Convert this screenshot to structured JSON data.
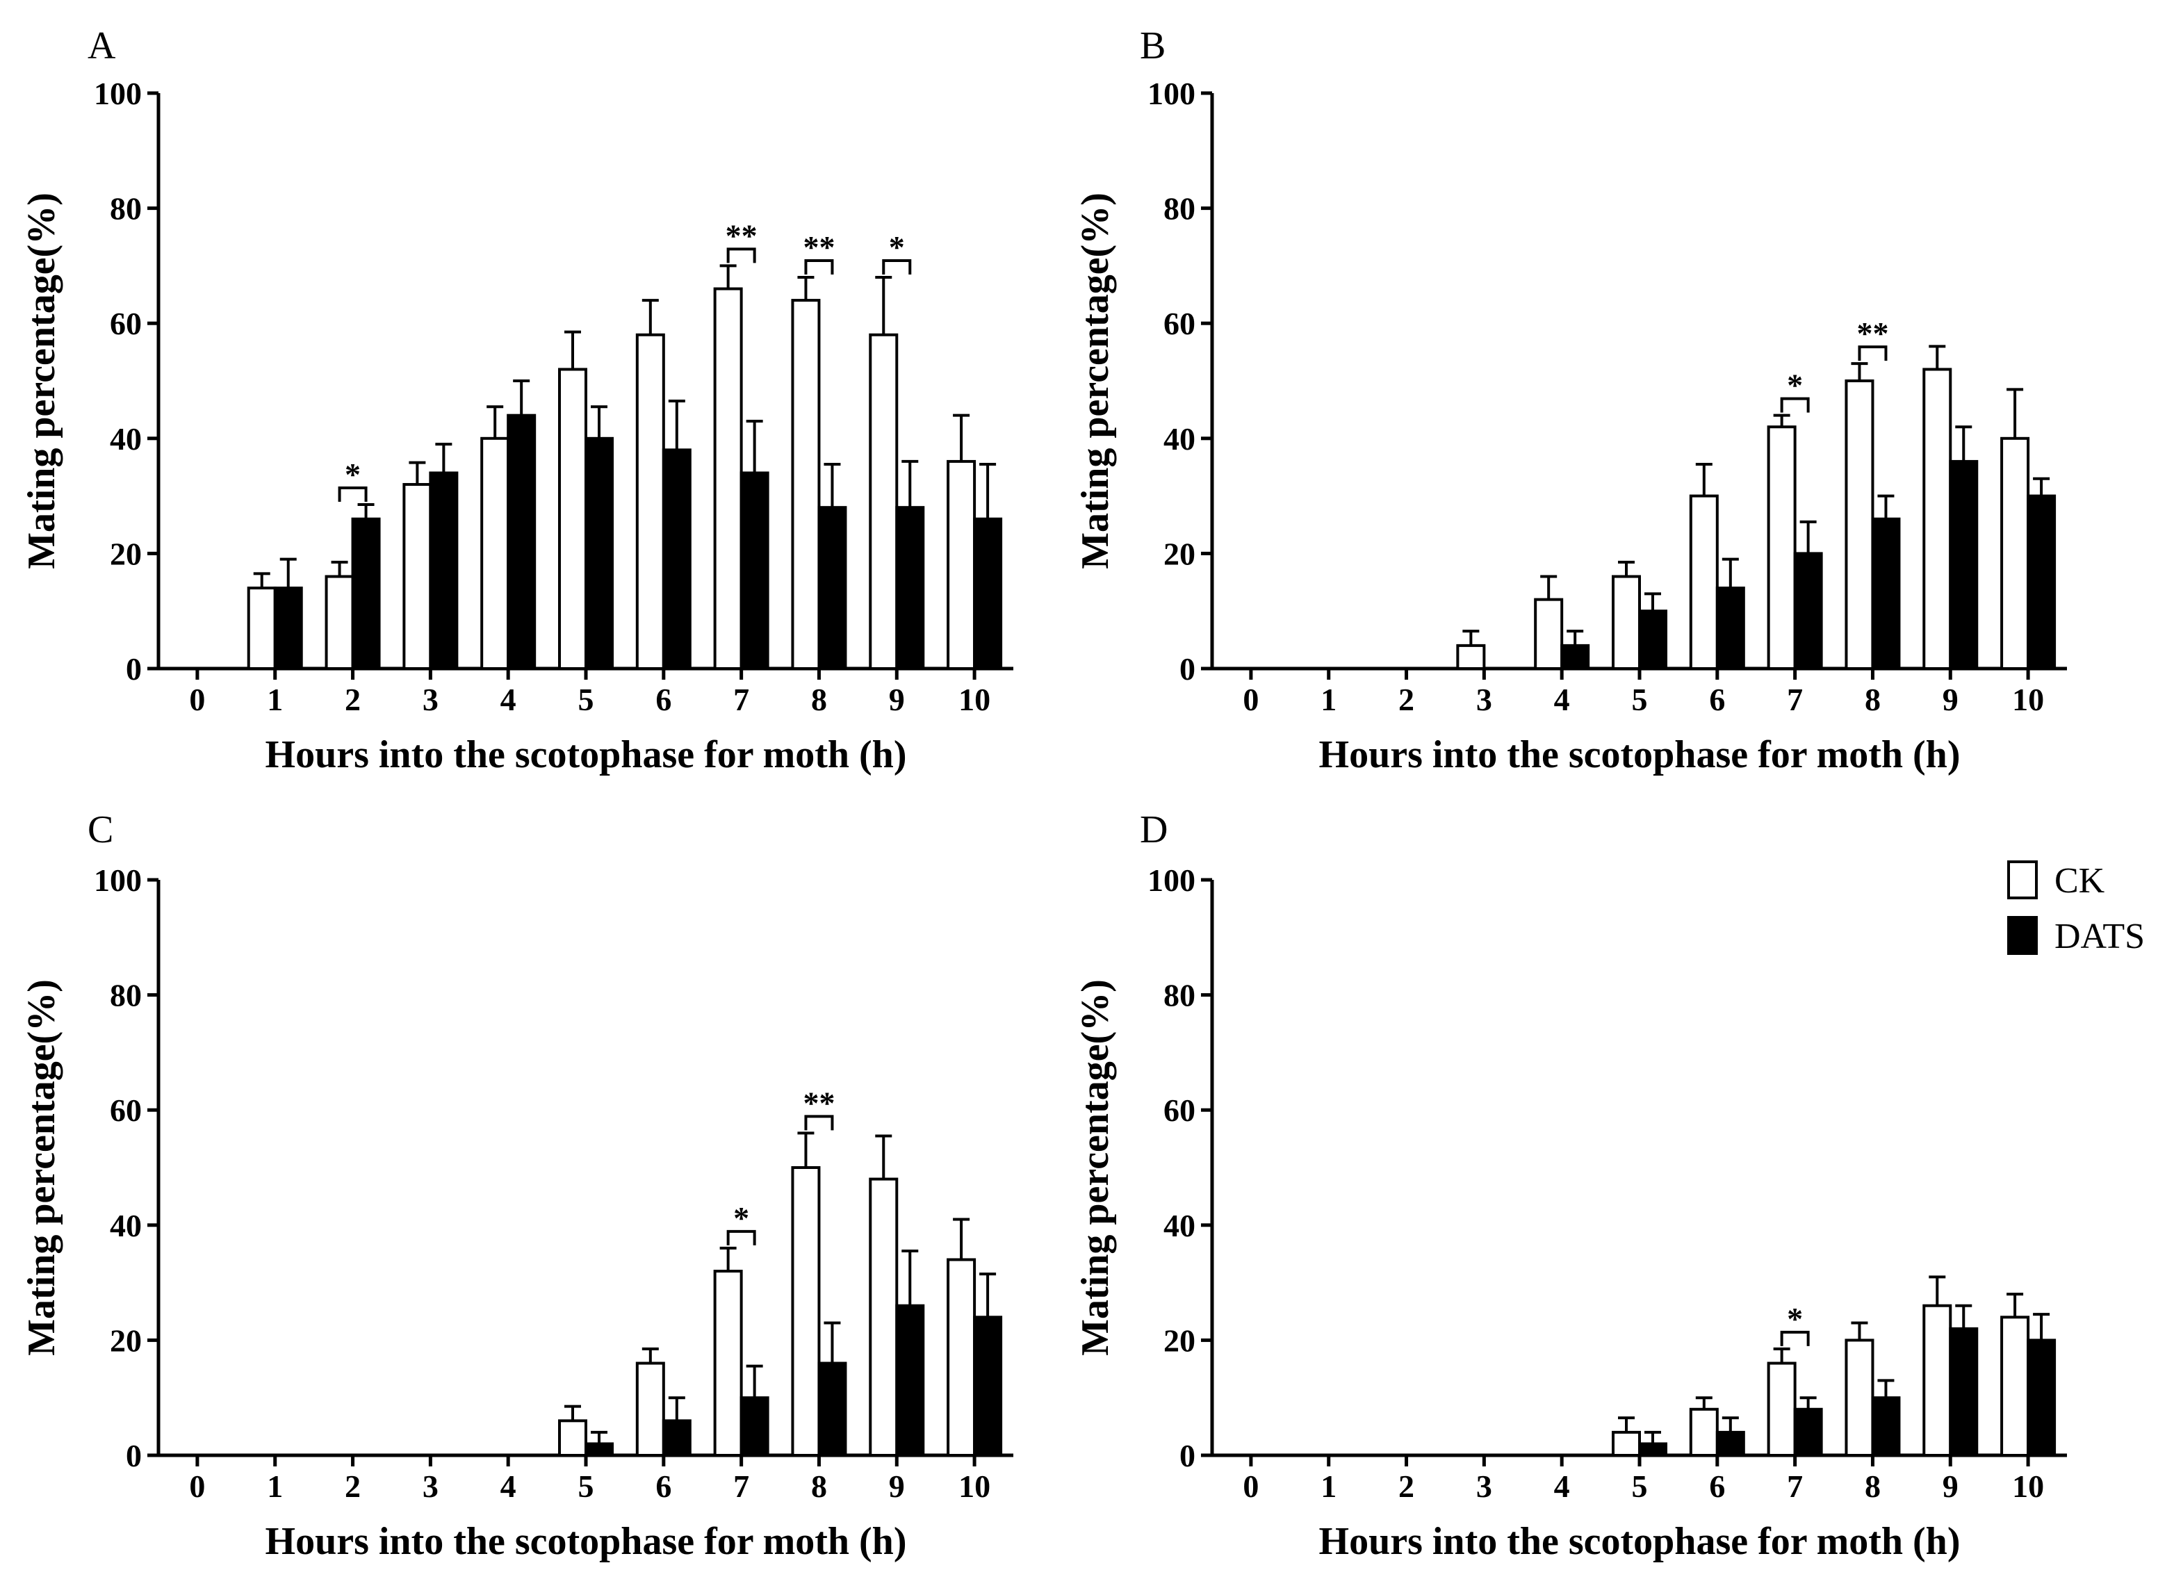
{
  "legend": {
    "series": [
      {
        "name": "CK",
        "color": "#ffffff"
      },
      {
        "name": "DATS",
        "color": "#000000"
      }
    ]
  },
  "chart_data": [
    {
      "panel": "A",
      "type": "bar",
      "categories": [
        "0",
        "1",
        "2",
        "3",
        "4",
        "5",
        "6",
        "7",
        "8",
        "9",
        "10"
      ],
      "xlabel": "Hours into the scotophase for moth (h)",
      "ylabel": "Mating percentage(%)",
      "ylim": [
        0,
        100
      ],
      "yticks": [
        "0",
        "20",
        "40",
        "60",
        "80",
        "100"
      ],
      "series": [
        {
          "name": "CK",
          "values": [
            0,
            14,
            16,
            32,
            40,
            52,
            58,
            66,
            64,
            58,
            36
          ],
          "errors": [
            0,
            2.5,
            2.5,
            3.8,
            5.5,
            6.5,
            6,
            4,
            4,
            10,
            8
          ]
        },
        {
          "name": "DATS",
          "values": [
            0,
            14,
            26,
            34,
            44,
            40,
            38,
            34,
            28,
            28,
            26
          ],
          "errors": [
            0,
            5,
            2.5,
            5,
            6,
            5.5,
            8.5,
            9,
            7.5,
            8,
            9.5
          ]
        }
      ],
      "significance": [
        {
          "category": "2",
          "label": "*"
        },
        {
          "category": "7",
          "label": "**"
        },
        {
          "category": "8",
          "label": "**"
        },
        {
          "category": "9",
          "label": "*"
        }
      ]
    },
    {
      "panel": "B",
      "type": "bar",
      "categories": [
        "0",
        "1",
        "2",
        "3",
        "4",
        "5",
        "6",
        "7",
        "8",
        "9",
        "10"
      ],
      "xlabel": "Hours into the scotophase for moth (h)",
      "ylabel": "Mating percentage(%)",
      "ylim": [
        0,
        100
      ],
      "yticks": [
        "0",
        "20",
        "40",
        "60",
        "80",
        "100"
      ],
      "series": [
        {
          "name": "CK",
          "values": [
            0,
            0,
            0,
            4,
            12,
            16,
            30,
            42,
            50,
            52,
            40
          ],
          "errors": [
            0,
            0,
            0,
            2.5,
            4,
            2.5,
            5.5,
            2,
            3,
            4,
            8.5
          ]
        },
        {
          "name": "DATS",
          "values": [
            0,
            0,
            0,
            0,
            4,
            10,
            14,
            20,
            26,
            36,
            30
          ],
          "errors": [
            0,
            0,
            0,
            0,
            2.5,
            3,
            5,
            5.5,
            4,
            6,
            3
          ]
        }
      ],
      "significance": [
        {
          "category": "7",
          "label": "*"
        },
        {
          "category": "8",
          "label": "**"
        }
      ]
    },
    {
      "panel": "C",
      "type": "bar",
      "categories": [
        "0",
        "1",
        "2",
        "3",
        "4",
        "5",
        "6",
        "7",
        "8",
        "9",
        "10"
      ],
      "xlabel": "Hours into the scotophase for moth (h)",
      "ylabel": "Mating percentage(%)",
      "ylim": [
        0,
        100
      ],
      "yticks": [
        "0",
        "20",
        "40",
        "60",
        "80",
        "100"
      ],
      "series": [
        {
          "name": "CK",
          "values": [
            0,
            0,
            0,
            0,
            0,
            6,
            16,
            32,
            50,
            48,
            34
          ],
          "errors": [
            0,
            0,
            0,
            0,
            0,
            2.5,
            2.5,
            4,
            6,
            7.5,
            7
          ]
        },
        {
          "name": "DATS",
          "values": [
            0,
            0,
            0,
            0,
            0,
            2,
            6,
            10,
            16,
            26,
            24
          ],
          "errors": [
            0,
            0,
            0,
            0,
            0,
            2,
            4,
            5.5,
            7,
            9.5,
            7.5
          ]
        }
      ],
      "significance": [
        {
          "category": "7",
          "label": "*"
        },
        {
          "category": "8",
          "label": "**"
        }
      ]
    },
    {
      "panel": "D",
      "type": "bar",
      "categories": [
        "0",
        "1",
        "2",
        "3",
        "4",
        "5",
        "6",
        "7",
        "8",
        "9",
        "10"
      ],
      "xlabel": "Hours into the scotophase for moth (h)",
      "ylabel": "Mating percentage(%)",
      "ylim": [
        0,
        100
      ],
      "yticks": [
        "0",
        "20",
        "40",
        "60",
        "80",
        "100"
      ],
      "series": [
        {
          "name": "CK",
          "values": [
            0,
            0,
            0,
            0,
            0,
            4,
            8,
            16,
            20,
            26,
            24
          ],
          "errors": [
            0,
            0,
            0,
            0,
            0,
            2.5,
            2,
            2.5,
            3,
            5,
            4
          ]
        },
        {
          "name": "DATS",
          "values": [
            0,
            0,
            0,
            0,
            0,
            2,
            4,
            8,
            10,
            22,
            20
          ],
          "errors": [
            0,
            0,
            0,
            0,
            0,
            2,
            2.5,
            2,
            3,
            4,
            4.5
          ]
        }
      ],
      "significance": [
        {
          "category": "7",
          "label": "*"
        }
      ]
    }
  ]
}
